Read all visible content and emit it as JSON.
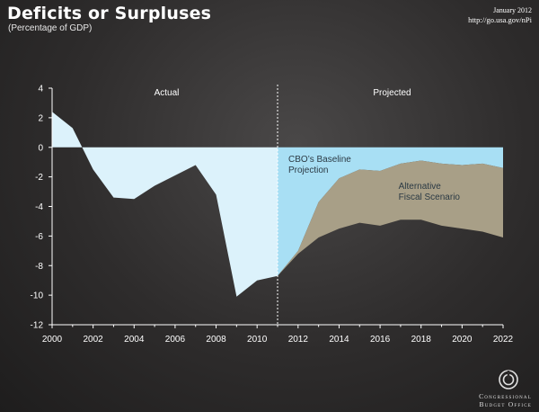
{
  "header": {
    "title": "Deficits or Surpluses",
    "subtitle": "(Percentage of GDP)",
    "date": "January 2012",
    "url": "http://go.usa.gov/nPi"
  },
  "logo": {
    "line1": "Congressional",
    "line2": "Budget Office",
    "icon": "cbo-logo-icon"
  },
  "colors": {
    "actual_fill": "#dcf2fb",
    "baseline_fill": "#a8dff4",
    "alternative_fill": "#a89f87",
    "background": "#2e2c2c"
  },
  "chart_data": {
    "type": "area",
    "title": "Deficits or Surpluses",
    "subtitle": "(Percentage of GDP)",
    "ylim": [
      -12,
      4
    ],
    "xlim": [
      2000,
      2022
    ],
    "yticks": [
      "4",
      "2",
      "0",
      "-2",
      "-4",
      "-6",
      "-8",
      "-10",
      "-12"
    ],
    "xticks": [
      "2000",
      "2002",
      "2004",
      "2006",
      "2008",
      "2010",
      "2012",
      "2014",
      "2016",
      "2018",
      "2020",
      "2022"
    ],
    "regions": {
      "actual": "Actual",
      "projected": "Projected"
    },
    "divider_year": 2011,
    "annotations": {
      "baseline": [
        "CBO’s Baseline",
        "Projection"
      ],
      "alternative": [
        "Alternative",
        "Fiscal Scenario"
      ]
    },
    "series": [
      {
        "name": "Actual",
        "x": [
          2000,
          2001,
          2002,
          2003,
          2004,
          2005,
          2006,
          2007,
          2008,
          2009,
          2010,
          2011
        ],
        "values": [
          2.4,
          1.3,
          -1.5,
          -3.4,
          -3.5,
          -2.6,
          -1.9,
          -1.2,
          -3.2,
          -10.1,
          -9.0,
          -8.7
        ]
      },
      {
        "name": "CBO’s Baseline Projection",
        "x": [
          2011,
          2012,
          2013,
          2014,
          2015,
          2016,
          2017,
          2018,
          2019,
          2020,
          2021,
          2022
        ],
        "values": [
          -8.7,
          -7.0,
          -3.7,
          -2.1,
          -1.5,
          -1.6,
          -1.1,
          -0.9,
          -1.1,
          -1.2,
          -1.1,
          -1.4
        ]
      },
      {
        "name": "Alternative Fiscal Scenario",
        "x": [
          2011,
          2012,
          2013,
          2014,
          2015,
          2016,
          2017,
          2018,
          2019,
          2020,
          2021,
          2022
        ],
        "values": [
          -8.7,
          -7.2,
          -6.1,
          -5.5,
          -5.1,
          -5.3,
          -4.9,
          -4.9,
          -5.3,
          -5.5,
          -5.7,
          -6.1
        ]
      }
    ]
  }
}
